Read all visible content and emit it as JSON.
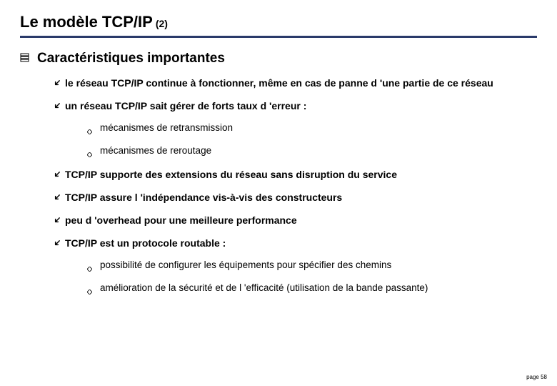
{
  "title": "Le modèle TCP/IP",
  "title_superscript": "(2)",
  "heading": "Caractéristiques importantes",
  "bullets": [
    {
      "text": "le réseau TCP/IP continue à fonctionner, même en cas de panne d 'une partie de ce réseau",
      "sub": []
    },
    {
      "text": "un réseau TCP/IP sait gérer de forts taux d 'erreur :",
      "sub": [
        "mécanismes de retransmission",
        "mécanismes de reroutage"
      ]
    },
    {
      "text": "TCP/IP supporte des extensions du réseau sans disruption du service",
      "sub": []
    },
    {
      "text": "TCP/IP assure l 'indépendance vis-à-vis des constructeurs",
      "sub": []
    },
    {
      "text": "peu d 'overhead pour une meilleure performance",
      "sub": []
    },
    {
      "text": "TCP/IP est un protocole routable :",
      "sub": [
        "possibilité de configurer les équipements pour spécifier des chemins",
        "amélioration de la sécurité et de l 'efficacité (utilisation de la bande passante)"
      ]
    }
  ],
  "page_label": "page 58",
  "colors": {
    "rule": "#2a3a6a",
    "text": "#000000",
    "bg": "#ffffff"
  }
}
